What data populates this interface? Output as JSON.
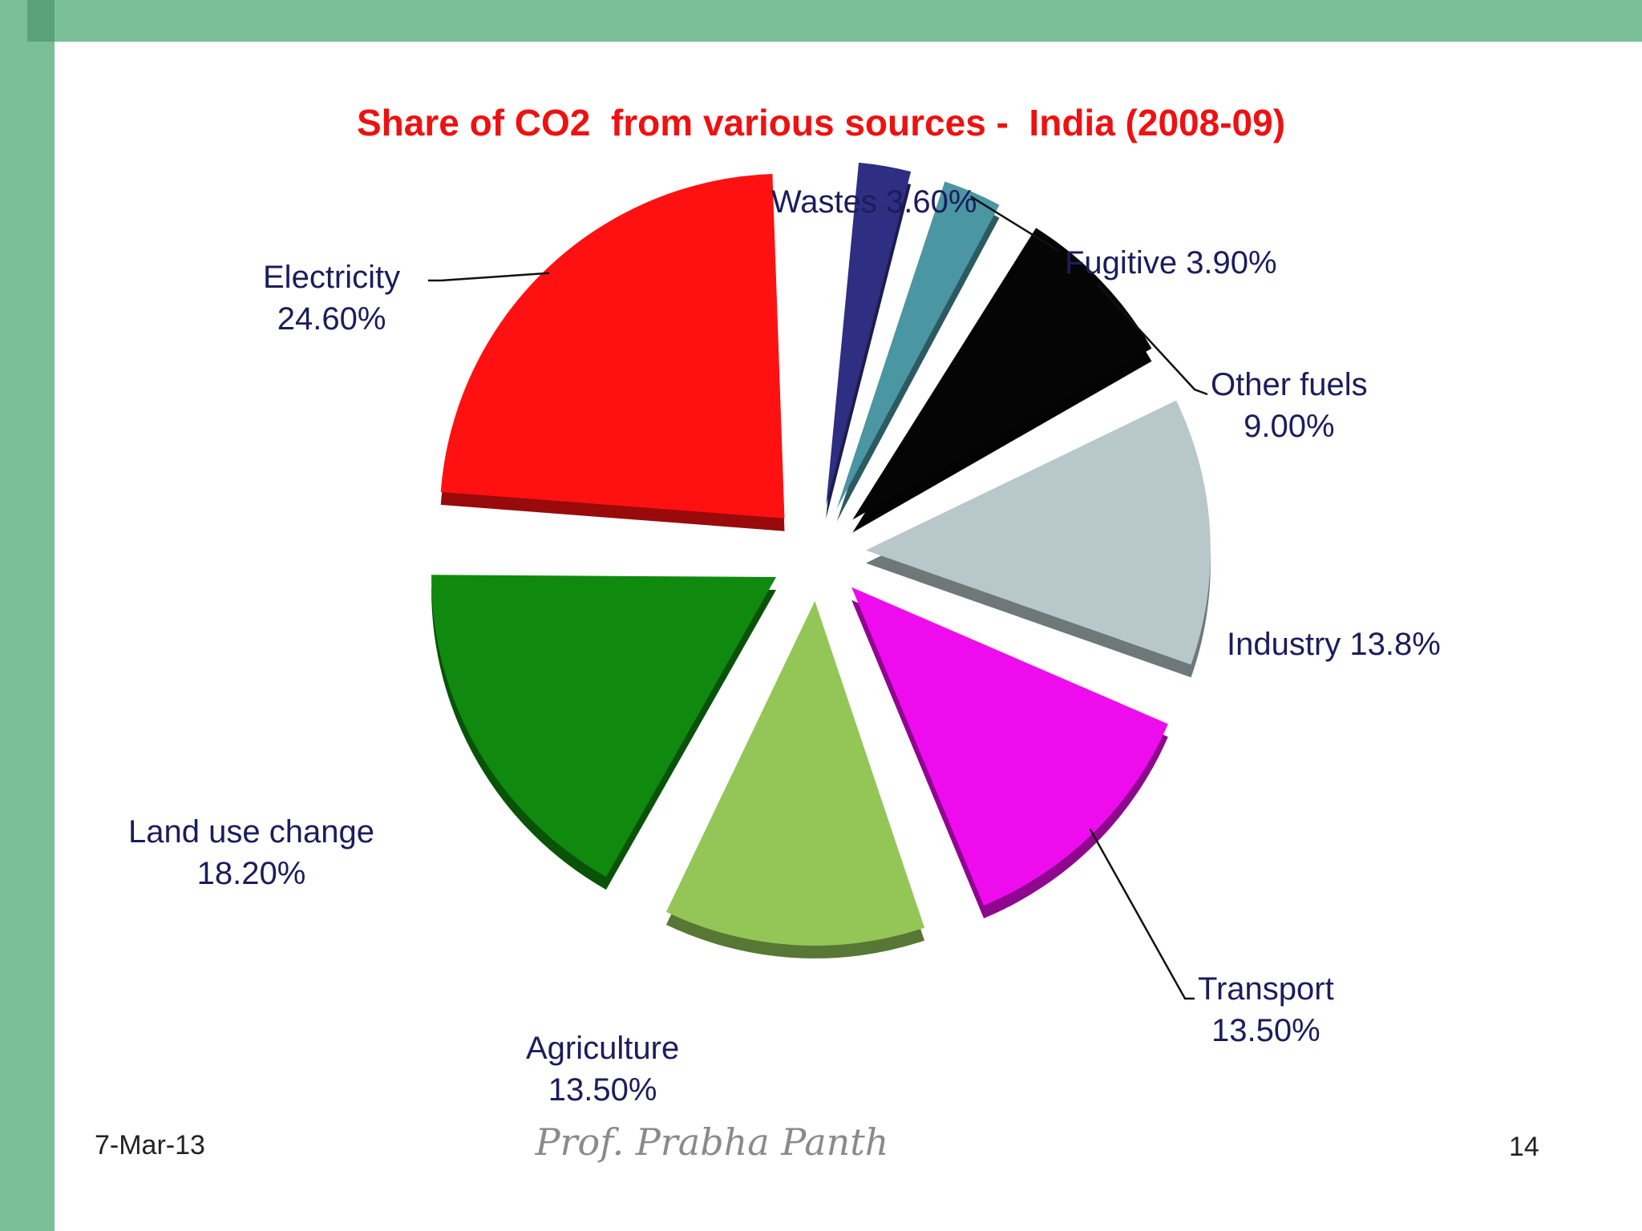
{
  "chart_data": {
    "type": "pie",
    "title": "Share of CO2  from various sources -  India (2008-09)",
    "slices": [
      {
        "label": "Wastes",
        "value_text": "3.60%",
        "value": 3.6,
        "color": "#2e2e82"
      },
      {
        "label": "Fugitive",
        "value_text": "3.90%",
        "value": 3.9,
        "color": "#4a96a2"
      },
      {
        "label": "Other fuels",
        "value_text": "9.00%",
        "value": 9.0,
        "color": "#050505"
      },
      {
        "label": "Industry",
        "value_text": "13.8%",
        "value": 13.8,
        "color": "#b8c8ca"
      },
      {
        "label": "Transport",
        "value_text": "13.50%",
        "value": 13.5,
        "color": "#ee0cee"
      },
      {
        "label": "Agriculture",
        "value_text": "13.50%",
        "value": 13.5,
        "color": "#93c657"
      },
      {
        "label": "Land use change",
        "value_text": "18.20%",
        "value": 18.2,
        "color": "#0f8a0f"
      },
      {
        "label": "Electricity",
        "value_text": "24.60%",
        "value": 24.6,
        "color": "#ff1111"
      }
    ]
  },
  "footer": {
    "date": "7-Mar-13",
    "author": "Prof. Prabha Panth",
    "page_number": "14"
  }
}
